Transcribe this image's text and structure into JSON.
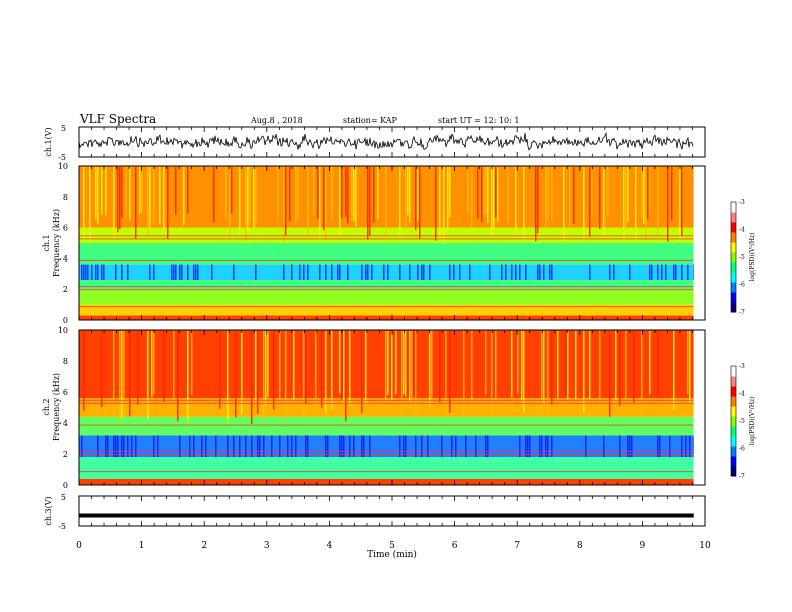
{
  "header": {
    "title": "VLF Spectra",
    "date": "Aug.8  , 2018",
    "station": "station= KAP",
    "start_ut": "start  UT  =    12: 10: 1"
  },
  "colors": {
    "ramp": [
      "#000080",
      "#0000ff",
      "#0080ff",
      "#00ffff",
      "#00ff80",
      "#80ff00",
      "#ffff00",
      "#ff8000",
      "#ff0000",
      "#ff8080",
      "#ffffff"
    ]
  },
  "chart_data": [
    {
      "type": "line",
      "name": "ch1-waveform",
      "ylabel": "ch.1(V)",
      "ylim": [
        -5,
        5
      ],
      "ytick_labels": [
        "5",
        "-5"
      ],
      "xlim": [
        0,
        10
      ]
    },
    {
      "type": "heatmap",
      "name": "ch1-spectrogram",
      "ylabel": "ch.1\nFrequency (kHz)",
      "ylim": [
        0,
        10
      ],
      "ytick_labels": [
        "0",
        "2",
        "4",
        "6",
        "8",
        "10"
      ],
      "xlim": [
        0,
        10
      ],
      "colorbar": {
        "label": "log(PSD)(V²/Hz)",
        "ticks": [
          "-3",
          "-4",
          "-5",
          "-6",
          "-7"
        ],
        "range": [
          -7,
          -3
        ]
      }
    },
    {
      "type": "heatmap",
      "name": "ch2-spectrogram",
      "ylabel": "ch.2\nFrequency (kHz)",
      "ylim": [
        0,
        10
      ],
      "ytick_labels": [
        "0",
        "2",
        "4",
        "6",
        "8",
        "10"
      ],
      "xlim": [
        0,
        10
      ],
      "colorbar": {
        "label": "log(PSD)(V²/Hz)",
        "ticks": [
          "-3",
          "-4",
          "-5",
          "-6",
          "-7"
        ],
        "range": [
          -7,
          -3
        ]
      }
    },
    {
      "type": "line",
      "name": "ch3-waveform",
      "ylabel": "ch.3(V)",
      "ylim": [
        -5,
        5
      ],
      "ytick_labels": [
        "5",
        "-5"
      ],
      "y_level": -1.5,
      "xlim": [
        0,
        10
      ]
    }
  ],
  "xaxis": {
    "label": "Time  (min)",
    "tick_labels": [
      "0",
      "1",
      "2",
      "3",
      "4",
      "5",
      "6",
      "7",
      "8",
      "9",
      "10"
    ],
    "range": [
      0,
      10
    ],
    "data_end": 9.82
  }
}
